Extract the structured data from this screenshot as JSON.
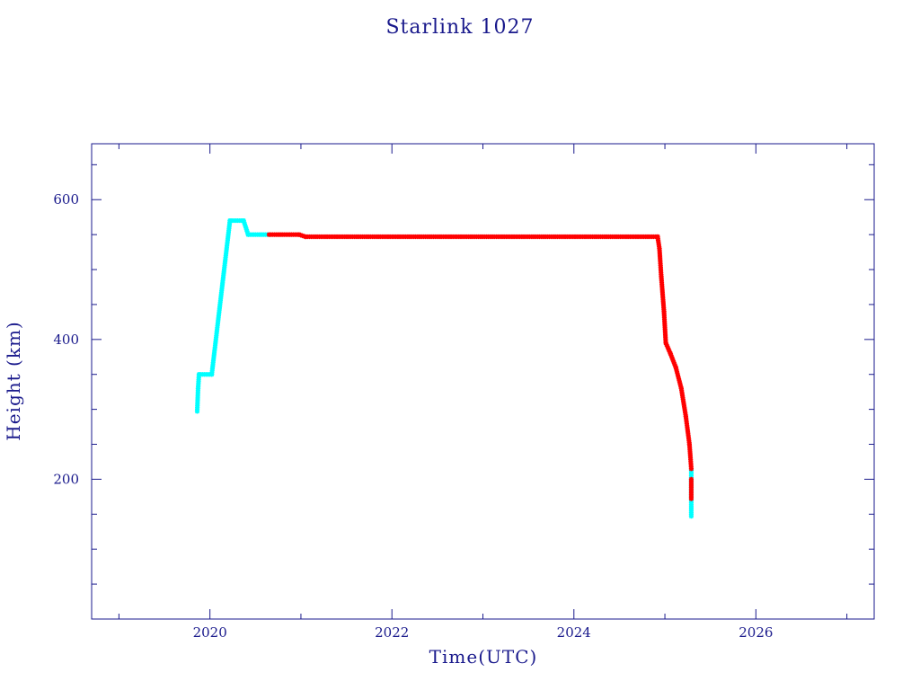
{
  "chart_data": {
    "type": "scatter",
    "title": "Starlink 1027",
    "xlabel": "Time(UTC)",
    "ylabel": "Height (km)",
    "xlim": [
      2018.7,
      2027.3
    ],
    "ylim": [
      0,
      680
    ],
    "x_ticks": [
      2020,
      2022,
      2024,
      2026
    ],
    "y_ticks": [
      200,
      400,
      600
    ],
    "grid": false,
    "legend": "none",
    "series": [
      {
        "color": "#00ffff",
        "marker": "star",
        "segments": [
          [
            [
              2019.86,
              297
            ],
            [
              2019.87,
              330
            ],
            [
              2019.88,
              350
            ]
          ],
          [
            [
              2019.88,
              350
            ],
            [
              2020.02,
              350
            ]
          ],
          [
            [
              2020.02,
              350
            ],
            [
              2020.22,
              570
            ]
          ],
          [
            [
              2020.22,
              570
            ],
            [
              2020.37,
              570
            ]
          ],
          [
            [
              2020.37,
              570
            ],
            [
              2020.42,
              550
            ]
          ],
          [
            [
              2020.42,
              550
            ],
            [
              2020.65,
              550
            ]
          ],
          [
            [
              2025.29,
              213
            ],
            [
              2025.29,
              147
            ]
          ]
        ]
      },
      {
        "color": "#ff0000",
        "marker": "star",
        "segments": [
          [
            [
              2020.65,
              550
            ],
            [
              2020.98,
              550
            ]
          ],
          [
            [
              2020.98,
              550
            ],
            [
              2021.05,
              547
            ]
          ],
          [
            [
              2021.05,
              547
            ],
            [
              2024.92,
              547
            ]
          ],
          [
            [
              2024.92,
              547
            ],
            [
              2024.94,
              530
            ],
            [
              2024.96,
              490
            ],
            [
              2024.99,
              440
            ],
            [
              2025.01,
              395
            ]
          ],
          [
            [
              2025.01,
              395
            ],
            [
              2025.06,
              380
            ],
            [
              2025.12,
              360
            ],
            [
              2025.18,
              330
            ],
            [
              2025.23,
              290
            ],
            [
              2025.27,
              250
            ],
            [
              2025.29,
              215
            ]
          ],
          [
            [
              2025.29,
              200
            ],
            [
              2025.29,
              172
            ]
          ]
        ]
      }
    ]
  }
}
